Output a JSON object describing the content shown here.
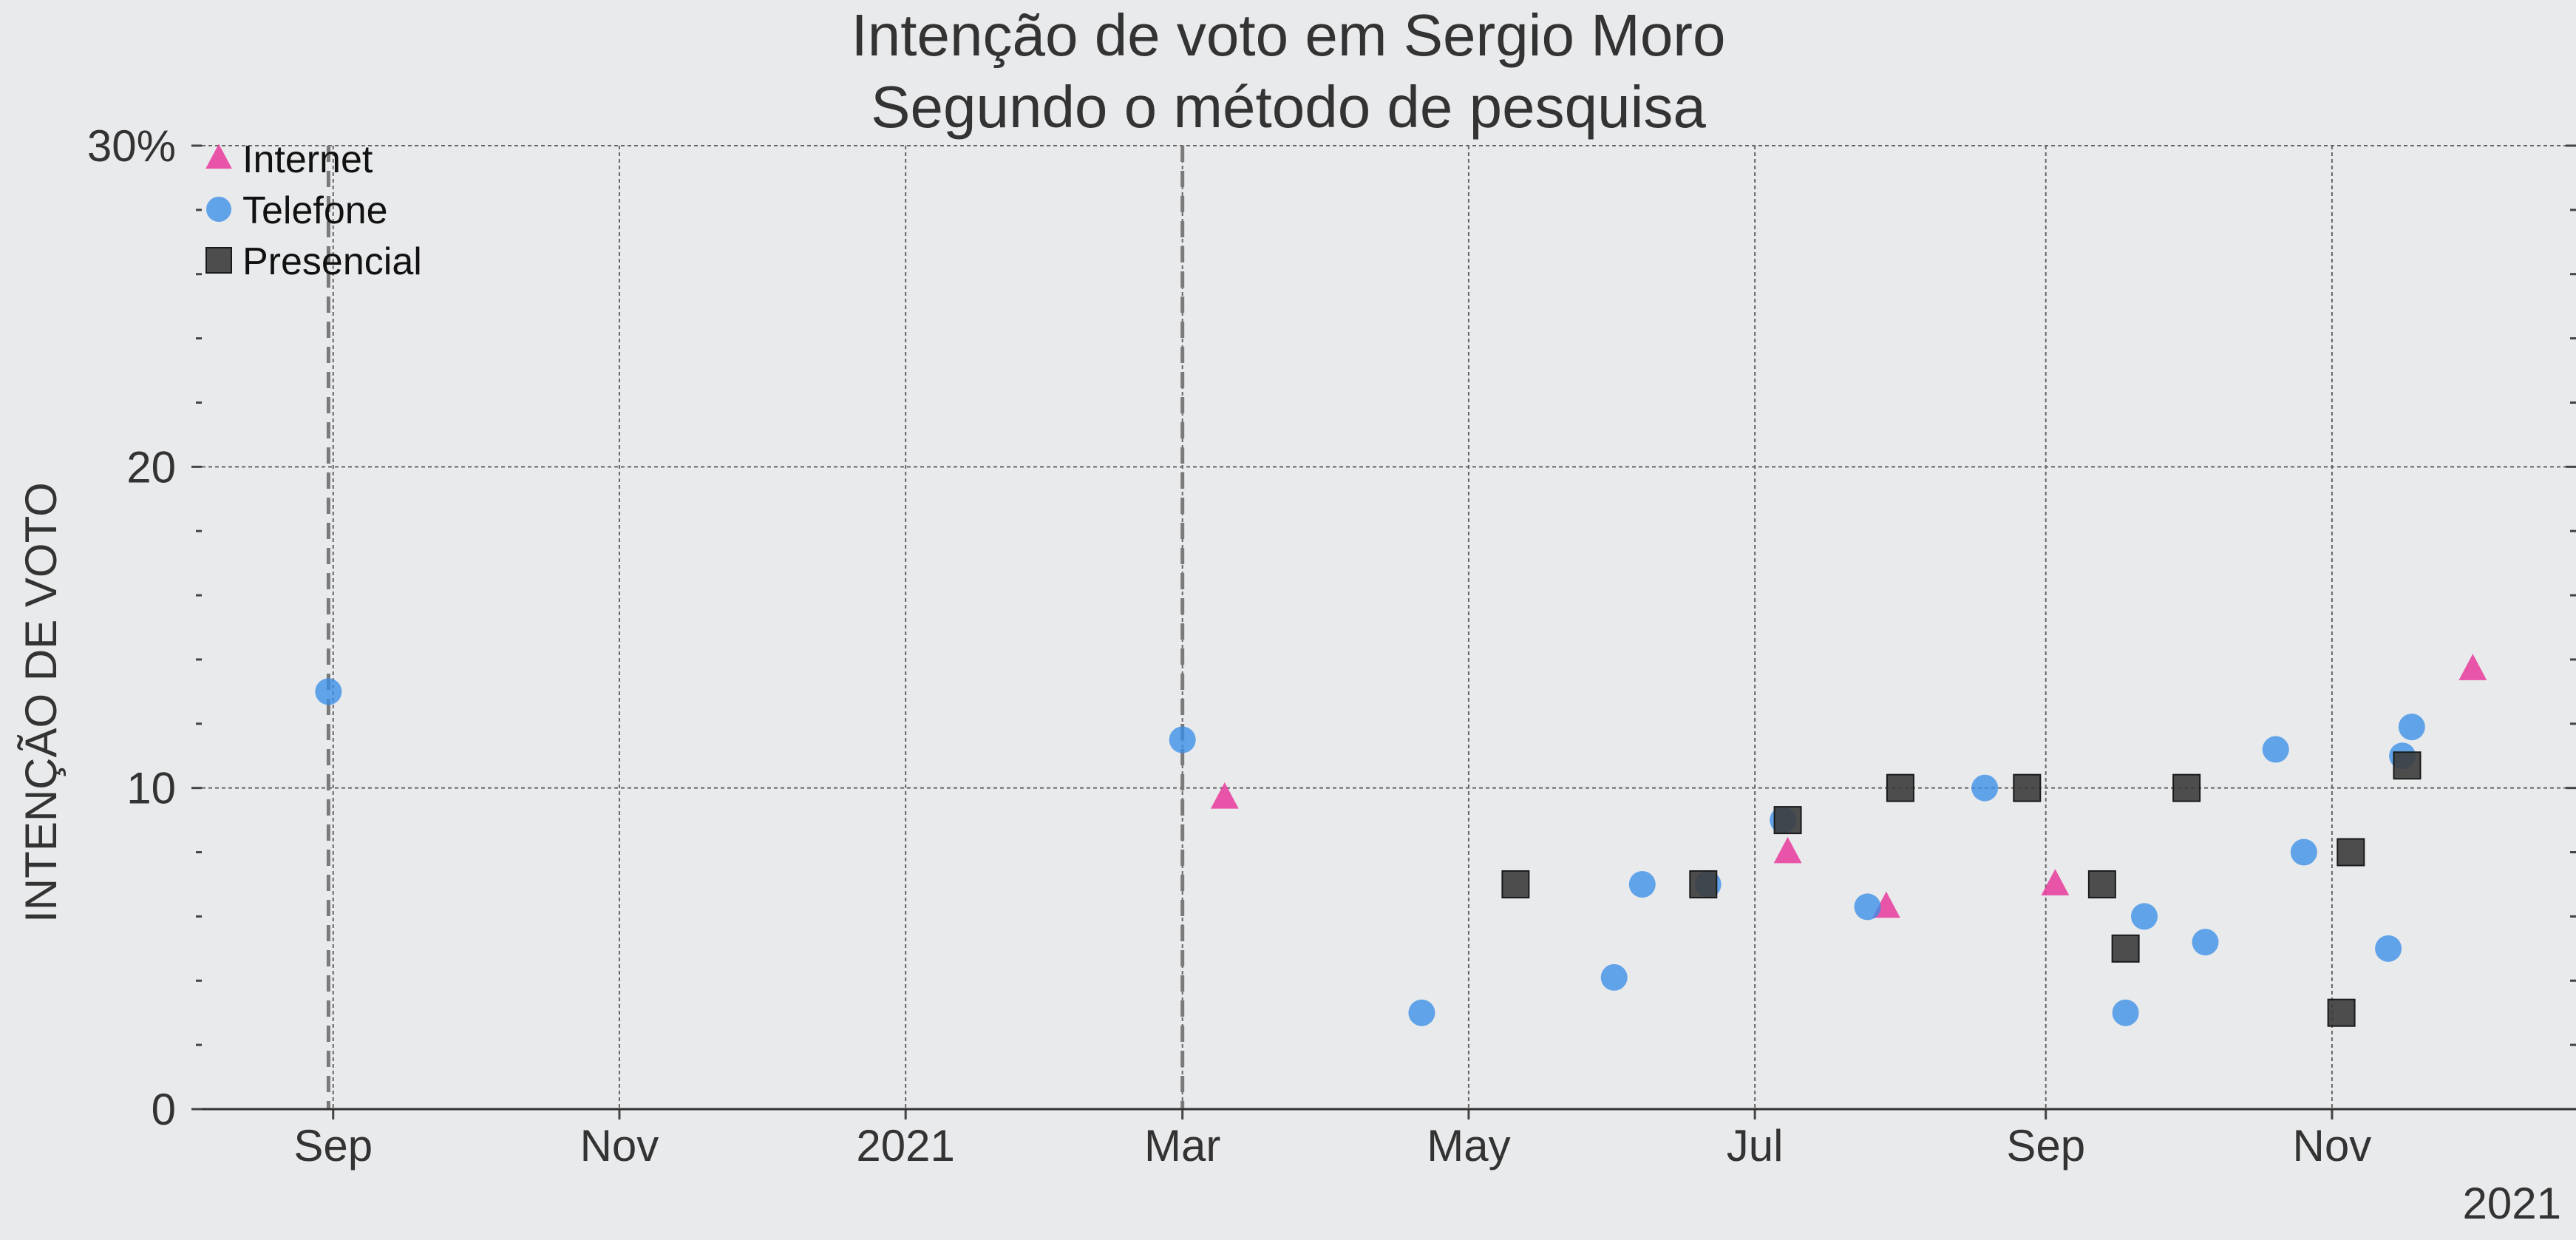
{
  "chart_data": {
    "type": "scatter",
    "title": "Intenção de voto em Sergio Moro",
    "subtitle": "Segundo o método de pesquisa",
    "xlabel": "",
    "ylabel": "INTENÇÃO DE VOTO",
    "x_axis_corner_label": "2021",
    "xlim": [
      "2020-08-04",
      "2021-12-23"
    ],
    "ylim": [
      0,
      30
    ],
    "x_ticks": [
      {
        "date": "2020-09-01",
        "label": "Sep"
      },
      {
        "date": "2020-11-01",
        "label": "Nov"
      },
      {
        "date": "2021-01-01",
        "label": "2021"
      },
      {
        "date": "2021-03-01",
        "label": "Mar"
      },
      {
        "date": "2021-05-01",
        "label": "May"
      },
      {
        "date": "2021-07-01",
        "label": "Jul"
      },
      {
        "date": "2021-09-01",
        "label": "Sep"
      },
      {
        "date": "2021-11-01",
        "label": "Nov"
      }
    ],
    "y_ticks": [
      {
        "value": 0,
        "label": "0"
      },
      {
        "value": 10,
        "label": "10"
      },
      {
        "value": 20,
        "label": "20"
      },
      {
        "value": 30,
        "label": "30%"
      }
    ],
    "y_minor_step": 2,
    "grid": true,
    "legend_position": "top-left",
    "reference_lines": [
      "2020-08-31",
      "2021-03-01"
    ],
    "series": [
      {
        "name": "Internet",
        "marker": "triangle",
        "color": "#e8399b",
        "points": [
          {
            "x": "2021-03-10",
            "y": 9.7
          },
          {
            "x": "2021-07-08",
            "y": 8.0
          },
          {
            "x": "2021-07-29",
            "y": 6.3
          },
          {
            "x": "2021-09-03",
            "y": 7.0
          },
          {
            "x": "2021-12-01",
            "y": 13.7
          }
        ]
      },
      {
        "name": "Telefone",
        "marker": "circle",
        "color": "#3a8ee8",
        "points": [
          {
            "x": "2020-08-31",
            "y": 13.0
          },
          {
            "x": "2021-03-01",
            "y": 11.5
          },
          {
            "x": "2021-04-21",
            "y": 3.0
          },
          {
            "x": "2021-06-01",
            "y": 4.1
          },
          {
            "x": "2021-06-07",
            "y": 7.0
          },
          {
            "x": "2021-06-21",
            "y": 7.0
          },
          {
            "x": "2021-07-07",
            "y": 9.0
          },
          {
            "x": "2021-07-25",
            "y": 6.3
          },
          {
            "x": "2021-08-19",
            "y": 10.0
          },
          {
            "x": "2021-09-18",
            "y": 3.0
          },
          {
            "x": "2021-09-22",
            "y": 6.0
          },
          {
            "x": "2021-10-05",
            "y": 5.2
          },
          {
            "x": "2021-10-20",
            "y": 11.2
          },
          {
            "x": "2021-10-26",
            "y": 8.0
          },
          {
            "x": "2021-11-13",
            "y": 5.0
          },
          {
            "x": "2021-11-16",
            "y": 11.0
          },
          {
            "x": "2021-11-18",
            "y": 11.9
          }
        ]
      },
      {
        "name": "Presencial",
        "marker": "square",
        "color": "#3c3c3c",
        "points": [
          {
            "x": "2021-05-11",
            "y": 7.0
          },
          {
            "x": "2021-06-20",
            "y": 7.0
          },
          {
            "x": "2021-07-08",
            "y": 9.0
          },
          {
            "x": "2021-08-01",
            "y": 10.0
          },
          {
            "x": "2021-08-28",
            "y": 10.0
          },
          {
            "x": "2021-09-13",
            "y": 7.0
          },
          {
            "x": "2021-09-18",
            "y": 5.0
          },
          {
            "x": "2021-10-01",
            "y": 10.0
          },
          {
            "x": "2021-11-03",
            "y": 3.0
          },
          {
            "x": "2021-11-05",
            "y": 8.0
          },
          {
            "x": "2021-11-17",
            "y": 10.7
          }
        ]
      }
    ]
  }
}
